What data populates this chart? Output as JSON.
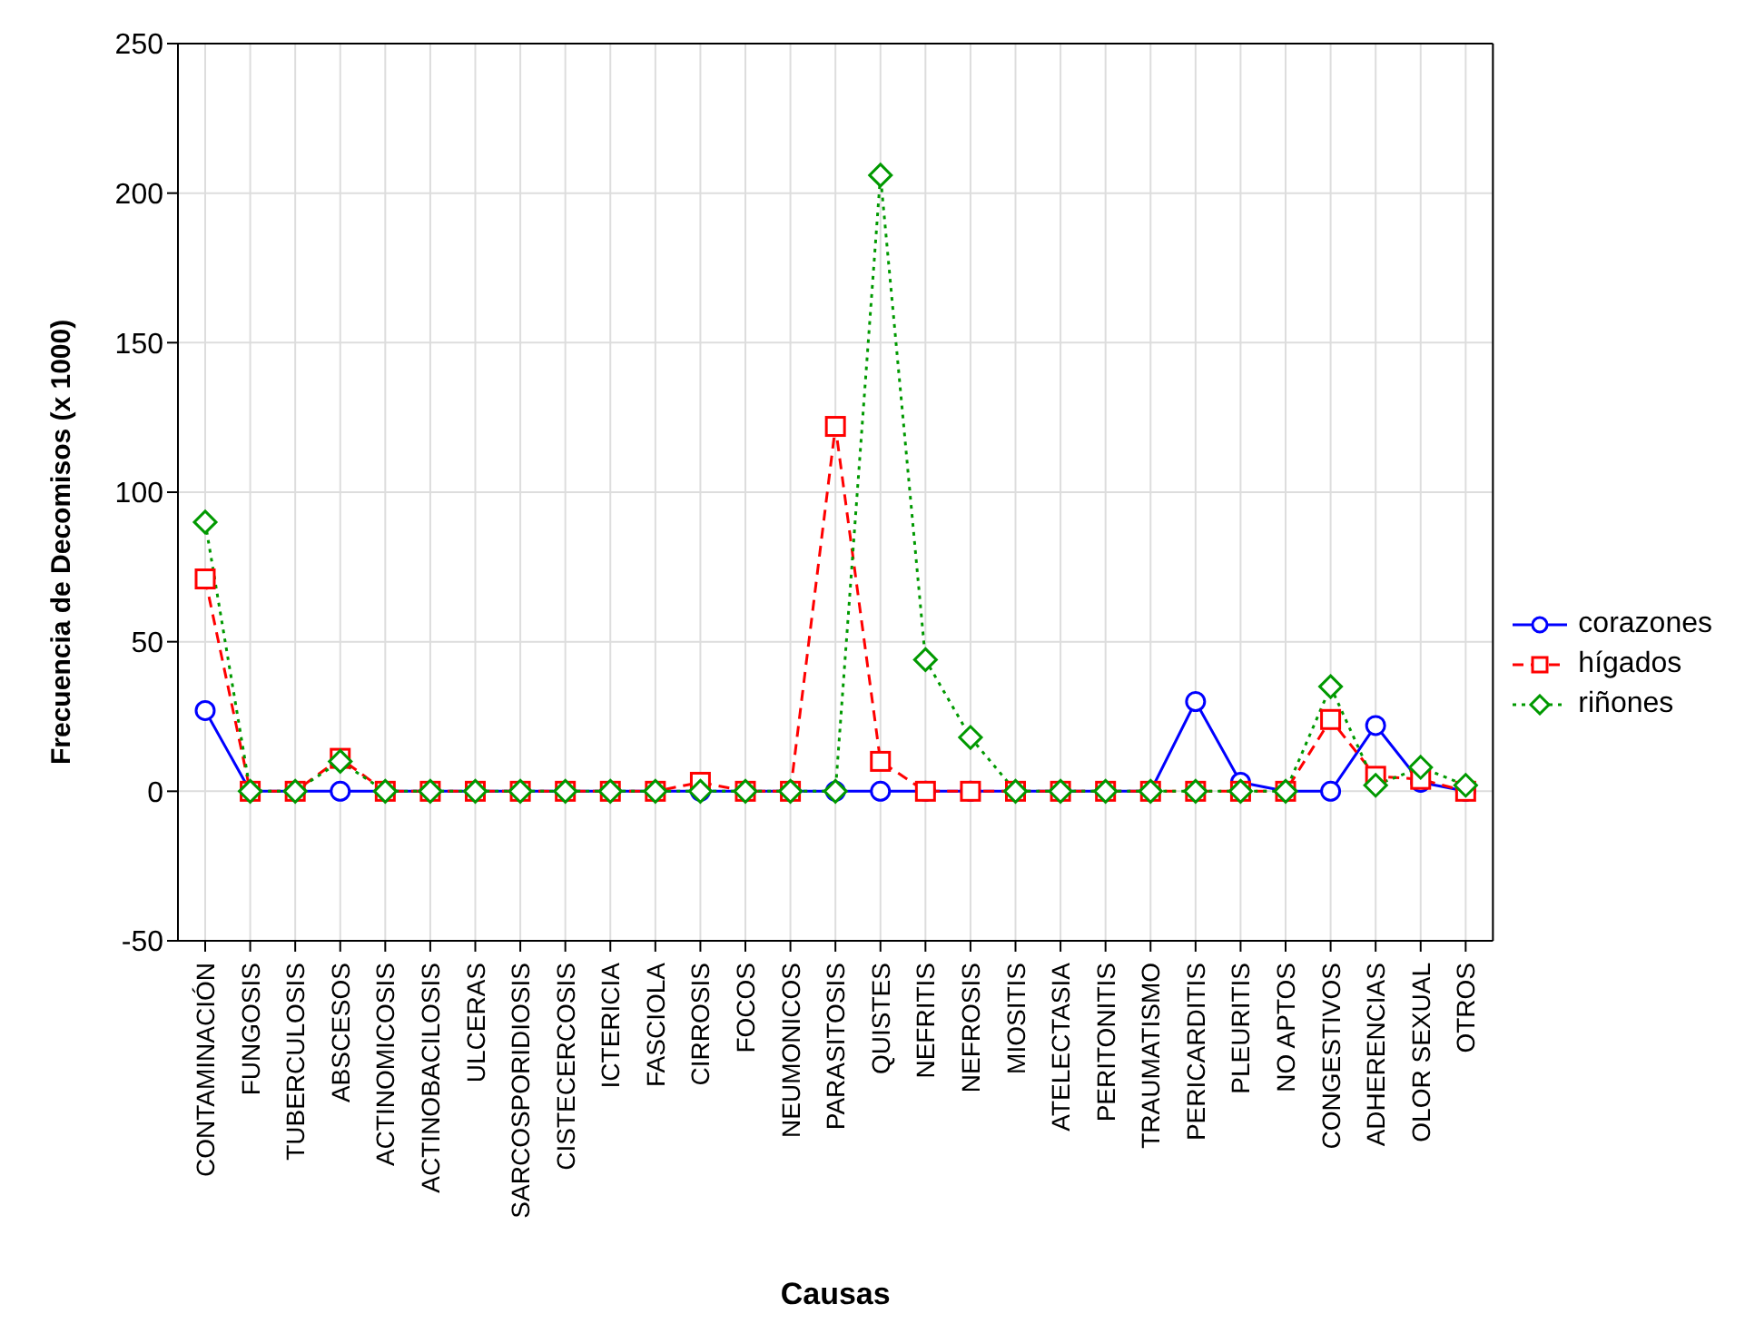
{
  "chart_data": {
    "type": "line",
    "xlabel": "Causas",
    "ylabel": "Frecuencia de Decomisos (x 1000)",
    "categories": [
      "CONTAMINACIÓN",
      "FUNGOSIS",
      "TUBERCULOSIS",
      "ABSCESOS",
      "ACTINOMICOSIS",
      "ACTINOBACILOSIS",
      "ULCERAS",
      "SARCOSPORIDIOSIS",
      "CISTECERCOSIS",
      "ICTERICIA",
      "FASCIOLA",
      "CIRROSIS",
      "FOCOS",
      "NEUMONICOS",
      "PARASITOSIS",
      "QUISTES",
      "NEFRITIS",
      "NEFROSIS",
      "MIOSITIS",
      "ATELECTASIA",
      "PERITONITIS",
      "TRAUMATISMO",
      "PERICARDITIS",
      "PLEURITIS",
      "NO APTOS",
      "CONGESTIVOS",
      "ADHERENCIAS",
      "OLOR SEXUAL",
      "OTROS"
    ],
    "series": [
      {
        "name": "corazones",
        "color": "#0000ff",
        "marker": "circle",
        "line_style": "solid",
        "values": [
          27,
          0,
          0,
          0,
          0,
          0,
          0,
          0,
          0,
          0,
          0,
          0,
          0,
          0,
          0,
          0,
          0,
          0,
          0,
          0,
          0,
          0,
          30,
          3,
          0,
          0,
          22,
          3,
          0
        ]
      },
      {
        "name": "hígados",
        "color": "#ff0000",
        "marker": "square",
        "line_style": "dashed",
        "values": [
          71,
          0,
          0,
          11,
          0,
          0,
          0,
          0,
          0,
          0,
          0,
          3,
          0,
          0,
          122,
          10,
          0,
          0,
          0,
          0,
          0,
          0,
          0,
          0,
          0,
          24,
          5,
          4,
          0
        ]
      },
      {
        "name": "riñones",
        "color": "#009900",
        "marker": "diamond",
        "line_style": "dotted",
        "values": [
          90,
          0,
          0,
          10,
          0,
          0,
          0,
          0,
          0,
          0,
          0,
          0,
          0,
          0,
          0,
          206,
          44,
          18,
          0,
          0,
          0,
          0,
          0,
          0,
          0,
          35,
          2,
          8,
          2
        ]
      }
    ],
    "ylim": [
      -50,
      250
    ],
    "yticks": [
      -50,
      0,
      50,
      100,
      150,
      200,
      250
    ],
    "grid": true,
    "legend": "right"
  }
}
